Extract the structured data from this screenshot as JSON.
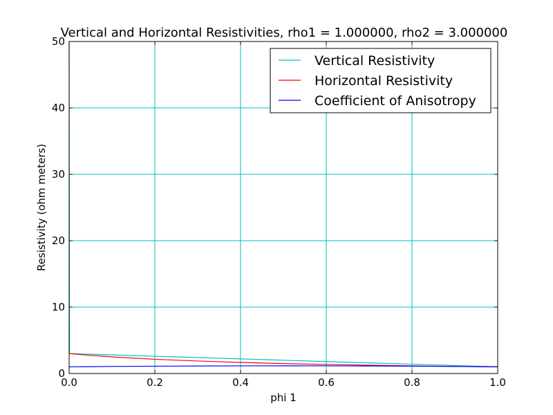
{
  "chart_data": {
    "type": "line",
    "title": "Vertical and Horizontal Resistivities, rho1 = 1.000000, rho2 = 3.000000",
    "xlabel": "phi 1",
    "ylabel": "Resistivity (ohm meters)",
    "xlim": [
      0.0,
      1.0
    ],
    "ylim": [
      0,
      50
    ],
    "xticks": [
      "0.0",
      "0.2",
      "0.4",
      "0.6",
      "0.8",
      "1.0"
    ],
    "yticks": [
      "0",
      "10",
      "20",
      "30",
      "40",
      "50"
    ],
    "grid": true,
    "legend_position": "top-right",
    "x": [
      0.0,
      0.001,
      0.01,
      0.05,
      0.1,
      0.2,
      0.3,
      0.4,
      0.5,
      0.6,
      0.7,
      0.8,
      0.9,
      1.0
    ],
    "series": [
      {
        "name": "Vertical Resistivity",
        "color": "#00bfbf",
        "values": [
          50,
          3.0,
          2.98,
          2.9,
          2.8,
          2.6,
          2.4,
          2.2,
          2.0,
          1.8,
          1.6,
          1.4,
          1.2,
          1.0
        ]
      },
      {
        "name": "Horizontal Resistivity",
        "color": "#ff0000",
        "values": [
          3.0,
          3.0,
          2.94,
          2.73,
          2.5,
          2.14,
          1.88,
          1.67,
          1.5,
          1.36,
          1.25,
          1.15,
          1.07,
          1.0
        ]
      },
      {
        "name": "Coefficient of Anisotropy",
        "color": "#0000ff",
        "values": [
          1.0,
          1.0,
          1.007,
          1.03,
          1.06,
          1.1,
          1.13,
          1.15,
          1.155,
          1.15,
          1.13,
          1.1,
          1.06,
          1.0
        ]
      }
    ]
  }
}
